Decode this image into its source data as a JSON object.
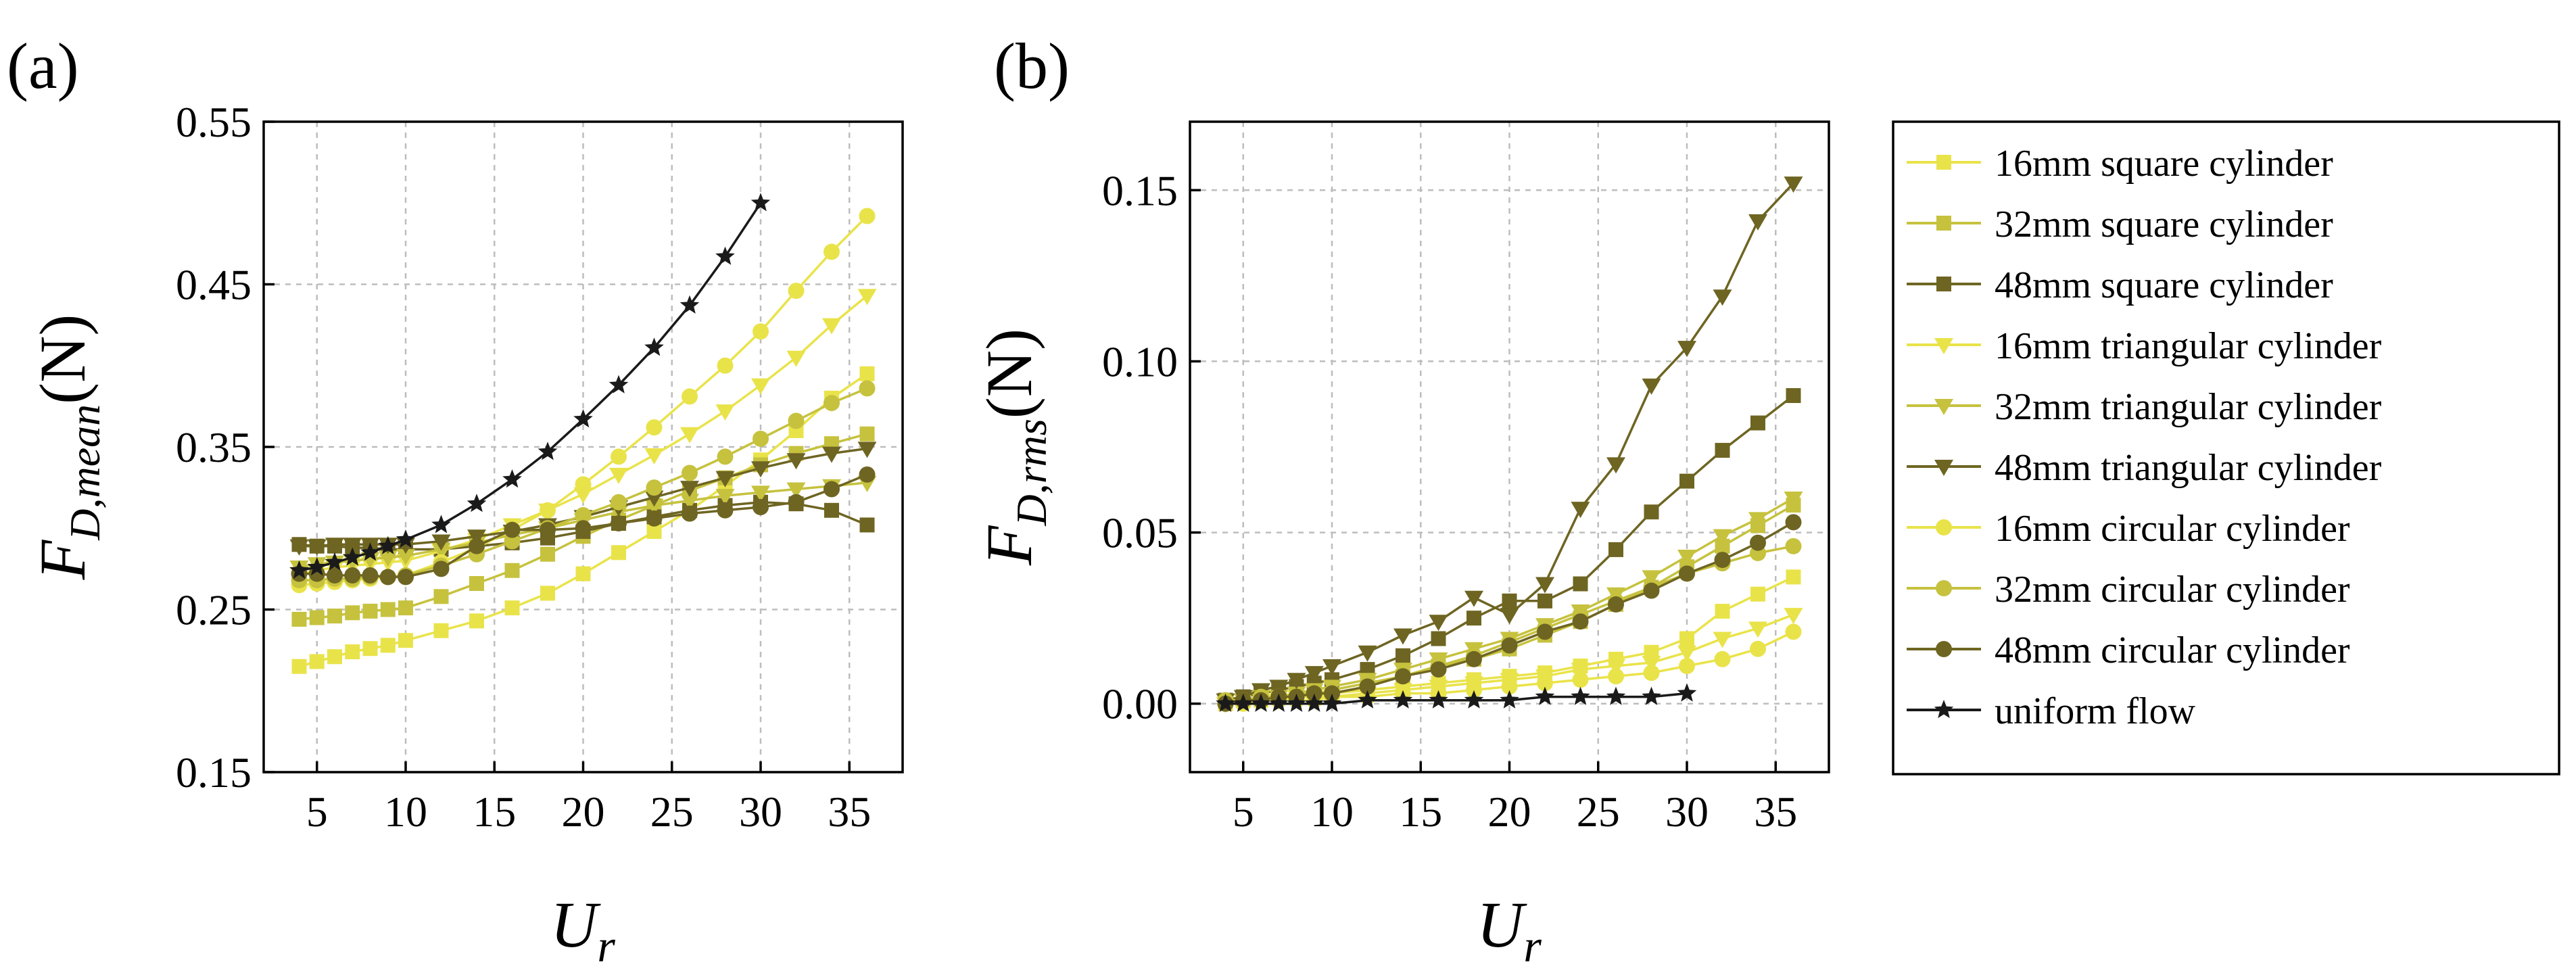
{
  "panels": [
    {
      "label": "(a)",
      "xlabel_main": "U",
      "xlabel_sub": "r",
      "ylabel_main": "F",
      "ylabel_sub": "D,mean",
      "ylabel_unit": "(N)"
    },
    {
      "label": "(b)",
      "xlabel_main": "U",
      "xlabel_sub": "r",
      "ylabel_main": "F",
      "ylabel_sub": "D,rms",
      "ylabel_unit": "(N)"
    }
  ],
  "legend": [
    {
      "name": "16mm square cylinder",
      "marker": "square",
      "color": "#e9e34a"
    },
    {
      "name": "32mm square cylinder",
      "marker": "square",
      "color": "#c6c23e"
    },
    {
      "name": "48mm square cylinder",
      "marker": "square",
      "color": "#6e6522"
    },
    {
      "name": "16mm triangular cylinder",
      "marker": "tri",
      "color": "#e9e34a"
    },
    {
      "name": "32mm triangular cylinder",
      "marker": "tri",
      "color": "#c6c23e"
    },
    {
      "name": "48mm triangular cylinder",
      "marker": "tri",
      "color": "#6e6522"
    },
    {
      "name": "16mm circular cylinder",
      "marker": "circle",
      "color": "#e9e34a"
    },
    {
      "name": "32mm circular cylinder",
      "marker": "circle",
      "color": "#c6c23e"
    },
    {
      "name": "48mm circular cylinder",
      "marker": "circle",
      "color": "#6e6522"
    },
    {
      "name": "uniform flow",
      "marker": "star",
      "color": "#1a1a1a"
    }
  ],
  "chart_data": [
    {
      "type": "line",
      "panel": "(a)",
      "xlim": [
        2,
        38
      ],
      "ylim": [
        0.15,
        0.55
      ],
      "xticks": [
        5,
        10,
        15,
        20,
        25,
        30,
        35
      ],
      "yticks": [
        0.15,
        0.25,
        0.35,
        0.45,
        0.55
      ],
      "ytick_labels": [
        "0.15",
        "0.25",
        "0.35",
        "0.45",
        "0.55"
      ],
      "grid": true,
      "series": [
        {
          "name": "16mm square cylinder",
          "x": [
            4,
            5,
            6,
            7,
            8,
            9,
            10,
            12,
            14,
            16,
            18,
            20,
            22,
            24,
            26,
            28,
            30,
            32,
            34,
            36
          ],
          "y": [
            0.215,
            0.218,
            0.221,
            0.224,
            0.226,
            0.228,
            0.231,
            0.237,
            0.243,
            0.251,
            0.26,
            0.272,
            0.285,
            0.298,
            0.311,
            0.326,
            0.342,
            0.36,
            0.38,
            0.395
          ]
        },
        {
          "name": "32mm square cylinder",
          "x": [
            4,
            5,
            6,
            7,
            8,
            9,
            10,
            12,
            14,
            16,
            18,
            20,
            22,
            24,
            26,
            28,
            30,
            32,
            34,
            36
          ],
          "y": [
            0.244,
            0.245,
            0.246,
            0.248,
            0.249,
            0.25,
            0.251,
            0.258,
            0.266,
            0.274,
            0.284,
            0.295,
            0.305,
            0.314,
            0.323,
            0.331,
            0.339,
            0.346,
            0.352,
            0.358
          ]
        },
        {
          "name": "48mm square cylinder",
          "x": [
            4,
            5,
            6,
            7,
            8,
            9,
            10,
            12,
            14,
            16,
            18,
            20,
            22,
            24,
            26,
            28,
            30,
            32,
            34,
            36
          ],
          "y": [
            0.29,
            0.289,
            0.289,
            0.288,
            0.288,
            0.287,
            0.287,
            0.287,
            0.289,
            0.291,
            0.294,
            0.298,
            0.303,
            0.307,
            0.311,
            0.314,
            0.316,
            0.315,
            0.311,
            0.302
          ]
        },
        {
          "name": "16mm triangular cylinder",
          "x": [
            4,
            5,
            6,
            7,
            8,
            9,
            10,
            12,
            14,
            16,
            18,
            20,
            22,
            24,
            26,
            28,
            30,
            32,
            34,
            36
          ],
          "y": [
            0.272,
            0.274,
            0.276,
            0.277,
            0.278,
            0.279,
            0.28,
            0.286,
            0.293,
            0.302,
            0.311,
            0.321,
            0.333,
            0.345,
            0.358,
            0.372,
            0.388,
            0.405,
            0.425,
            0.443
          ]
        },
        {
          "name": "32mm triangular cylinder",
          "x": [
            4,
            5,
            6,
            7,
            8,
            9,
            10,
            12,
            14,
            16,
            18,
            20,
            22,
            24,
            26,
            28,
            30,
            32,
            34,
            36
          ],
          "y": [
            0.276,
            0.278,
            0.279,
            0.28,
            0.281,
            0.282,
            0.283,
            0.287,
            0.291,
            0.296,
            0.3,
            0.305,
            0.31,
            0.314,
            0.317,
            0.32,
            0.322,
            0.324,
            0.326,
            0.328
          ]
        },
        {
          "name": "48mm triangular cylinder",
          "x": [
            4,
            5,
            6,
            7,
            8,
            9,
            10,
            12,
            14,
            16,
            18,
            20,
            22,
            24,
            26,
            28,
            30,
            32,
            34,
            36
          ],
          "y": [
            0.289,
            0.289,
            0.29,
            0.29,
            0.29,
            0.29,
            0.29,
            0.292,
            0.295,
            0.298,
            0.302,
            0.307,
            0.313,
            0.319,
            0.325,
            0.331,
            0.337,
            0.342,
            0.346,
            0.349
          ]
        },
        {
          "name": "16mm circular cylinder",
          "x": [
            4,
            5,
            6,
            7,
            8,
            9,
            10,
            12,
            14,
            16,
            18,
            20,
            22,
            24,
            26,
            28,
            30,
            32,
            34,
            36
          ],
          "y": [
            0.265,
            0.266,
            0.267,
            0.268,
            0.269,
            0.27,
            0.271,
            0.279,
            0.288,
            0.299,
            0.311,
            0.327,
            0.344,
            0.362,
            0.381,
            0.4,
            0.421,
            0.446,
            0.47,
            0.492
          ]
        },
        {
          "name": "32mm circular cylinder",
          "x": [
            4,
            5,
            6,
            7,
            8,
            9,
            10,
            12,
            14,
            16,
            18,
            20,
            22,
            24,
            26,
            28,
            30,
            32,
            34,
            36
          ],
          "y": [
            0.268,
            0.268,
            0.269,
            0.269,
            0.27,
            0.27,
            0.271,
            0.277,
            0.284,
            0.292,
            0.3,
            0.308,
            0.316,
            0.325,
            0.334,
            0.344,
            0.355,
            0.366,
            0.377,
            0.386
          ]
        },
        {
          "name": "48mm circular cylinder",
          "x": [
            4,
            5,
            6,
            7,
            8,
            9,
            10,
            12,
            14,
            16,
            18,
            20,
            22,
            24,
            26,
            28,
            30,
            32,
            34,
            36
          ],
          "y": [
            0.272,
            0.272,
            0.271,
            0.271,
            0.271,
            0.27,
            0.27,
            0.275,
            0.289,
            0.299,
            0.299,
            0.3,
            0.303,
            0.306,
            0.309,
            0.311,
            0.313,
            0.316,
            0.324,
            0.333
          ]
        },
        {
          "name": "uniform flow",
          "x": [
            4,
            5,
            6,
            7,
            8,
            9,
            10,
            12,
            14,
            16,
            18,
            20,
            22,
            24,
            26,
            28,
            30
          ],
          "y": [
            0.274,
            0.276,
            0.279,
            0.282,
            0.285,
            0.289,
            0.293,
            0.302,
            0.315,
            0.33,
            0.347,
            0.367,
            0.388,
            0.411,
            0.437,
            0.467,
            0.5
          ]
        }
      ]
    },
    {
      "type": "line",
      "panel": "(b)",
      "xlim": [
        2,
        38
      ],
      "ylim": [
        -0.02,
        0.17
      ],
      "xticks": [
        5,
        10,
        15,
        20,
        25,
        30,
        35
      ],
      "yticks": [
        0.0,
        0.05,
        0.1,
        0.15
      ],
      "ytick_labels": [
        "0.00",
        "0.05",
        "0.10",
        "0.15"
      ],
      "grid": true,
      "series": [
        {
          "name": "16mm square cylinder",
          "x": [
            4,
            5,
            6,
            7,
            8,
            9,
            10,
            12,
            14,
            16,
            18,
            20,
            22,
            24,
            26,
            28,
            30,
            32,
            34,
            36
          ],
          "y": [
            0.0,
            0.001,
            0.001,
            0.002,
            0.002,
            0.002,
            0.003,
            0.004,
            0.005,
            0.006,
            0.007,
            0.008,
            0.009,
            0.011,
            0.013,
            0.015,
            0.019,
            0.027,
            0.032,
            0.037
          ]
        },
        {
          "name": "32mm square cylinder",
          "x": [
            4,
            5,
            6,
            7,
            8,
            9,
            10,
            12,
            14,
            16,
            18,
            20,
            22,
            24,
            26,
            28,
            30,
            32,
            34,
            36
          ],
          "y": [
            0.001,
            0.001,
            0.002,
            0.002,
            0.003,
            0.003,
            0.004,
            0.006,
            0.008,
            0.011,
            0.013,
            0.016,
            0.02,
            0.024,
            0.029,
            0.034,
            0.04,
            0.046,
            0.052,
            0.058
          ]
        },
        {
          "name": "48mm square cylinder",
          "x": [
            4,
            5,
            6,
            7,
            8,
            9,
            10,
            12,
            14,
            16,
            18,
            20,
            22,
            24,
            26,
            28,
            30,
            32,
            34,
            36
          ],
          "y": [
            0.001,
            0.002,
            0.003,
            0.004,
            0.005,
            0.006,
            0.007,
            0.01,
            0.014,
            0.019,
            0.025,
            0.03,
            0.03,
            0.035,
            0.045,
            0.056,
            0.065,
            0.074,
            0.082,
            0.09
          ]
        },
        {
          "name": "16mm triangular cylinder",
          "x": [
            4,
            5,
            6,
            7,
            8,
            9,
            10,
            12,
            14,
            16,
            18,
            20,
            22,
            24,
            26,
            28,
            30,
            32,
            34,
            36
          ],
          "y": [
            0.0,
            0.001,
            0.001,
            0.001,
            0.002,
            0.002,
            0.002,
            0.003,
            0.004,
            0.005,
            0.006,
            0.007,
            0.008,
            0.01,
            0.011,
            0.012,
            0.015,
            0.019,
            0.022,
            0.026
          ]
        },
        {
          "name": "32mm triangular cylinder",
          "x": [
            4,
            5,
            6,
            7,
            8,
            9,
            10,
            12,
            14,
            16,
            18,
            20,
            22,
            24,
            26,
            28,
            30,
            32,
            34,
            36
          ],
          "y": [
            0.001,
            0.001,
            0.002,
            0.002,
            0.003,
            0.004,
            0.005,
            0.007,
            0.01,
            0.013,
            0.016,
            0.019,
            0.023,
            0.027,
            0.032,
            0.037,
            0.043,
            0.049,
            0.054,
            0.06
          ]
        },
        {
          "name": "48mm triangular cylinder",
          "x": [
            4,
            5,
            6,
            7,
            8,
            9,
            10,
            12,
            14,
            16,
            18,
            20,
            22,
            24,
            26,
            28,
            30,
            32,
            34,
            36
          ],
          "y": [
            0.001,
            0.002,
            0.004,
            0.005,
            0.007,
            0.009,
            0.011,
            0.015,
            0.02,
            0.024,
            0.031,
            0.026,
            0.035,
            0.057,
            0.07,
            0.093,
            0.104,
            0.119,
            0.141,
            0.152
          ]
        },
        {
          "name": "16mm circular cylinder",
          "x": [
            4,
            5,
            6,
            7,
            8,
            9,
            10,
            12,
            14,
            16,
            18,
            20,
            22,
            24,
            26,
            28,
            30,
            32,
            34,
            36
          ],
          "y": [
            0.0,
            0.0,
            0.001,
            0.001,
            0.001,
            0.001,
            0.002,
            0.002,
            0.003,
            0.003,
            0.004,
            0.005,
            0.006,
            0.007,
            0.008,
            0.009,
            0.011,
            0.013,
            0.016,
            0.021
          ]
        },
        {
          "name": "32mm circular cylinder",
          "x": [
            4,
            5,
            6,
            7,
            8,
            9,
            10,
            12,
            14,
            16,
            18,
            20,
            22,
            24,
            26,
            28,
            30,
            32,
            34,
            36
          ],
          "y": [
            0.001,
            0.001,
            0.002,
            0.002,
            0.002,
            0.003,
            0.003,
            0.005,
            0.008,
            0.011,
            0.014,
            0.018,
            0.022,
            0.026,
            0.03,
            0.034,
            0.038,
            0.041,
            0.044,
            0.046
          ]
        },
        {
          "name": "48mm circular cylinder",
          "x": [
            4,
            5,
            6,
            7,
            8,
            9,
            10,
            12,
            14,
            16,
            18,
            20,
            22,
            24,
            26,
            28,
            30,
            32,
            34,
            36
          ],
          "y": [
            0.0,
            0.001,
            0.001,
            0.002,
            0.002,
            0.003,
            0.003,
            0.005,
            0.008,
            0.01,
            0.013,
            0.017,
            0.021,
            0.024,
            0.029,
            0.033,
            0.038,
            0.042,
            0.047,
            0.053
          ]
        },
        {
          "name": "uniform flow",
          "x": [
            4,
            5,
            6,
            7,
            8,
            9,
            10,
            12,
            14,
            16,
            18,
            20,
            22,
            24,
            26,
            28,
            30
          ],
          "y": [
            0.0,
            0.0,
            0.0,
            0.0,
            0.0,
            0.0,
            0.0,
            0.001,
            0.001,
            0.001,
            0.001,
            0.001,
            0.002,
            0.002,
            0.002,
            0.002,
            0.003
          ]
        }
      ]
    }
  ]
}
